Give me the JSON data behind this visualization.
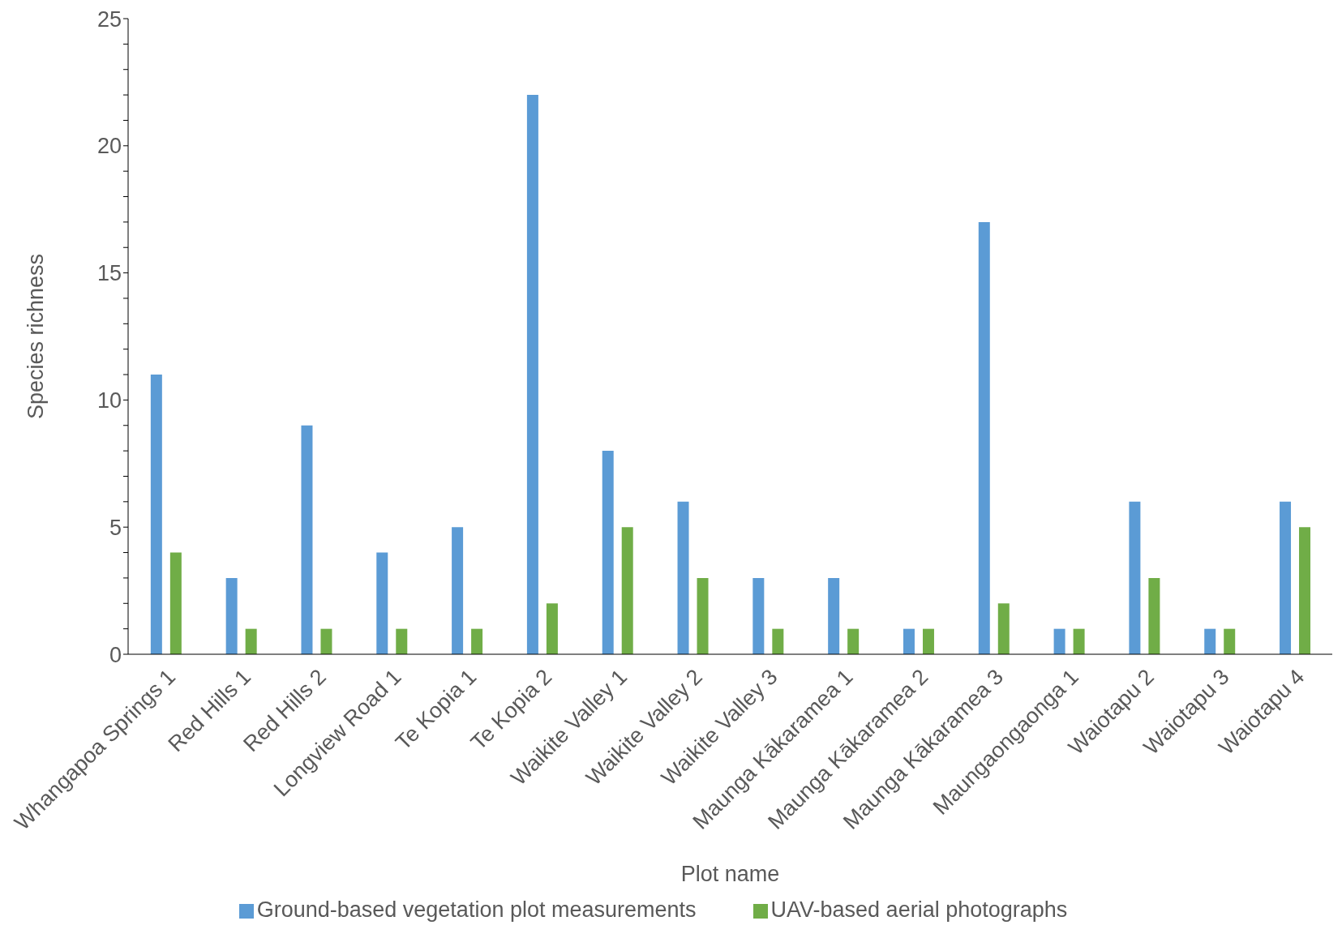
{
  "chart_data": {
    "type": "bar",
    "xlabel": "Plot name",
    "ylabel": "Species richness",
    "categories": [
      "Whangapoa Springs 1",
      "Red Hills 1",
      "Red Hills 2",
      "Longview Road 1",
      "Te Kopia 1",
      "Te Kopia 2",
      "Waikite Valley 1",
      "Waikite Valley 2",
      "Waikite Valley 3",
      "Maunga Kākaramea 1",
      "Maunga Kākaramea 2",
      "Maunga Kākaramea 3",
      "Maungaongaonga 1",
      "Waiotapu 2",
      "Waiotapu 3",
      "Waiotapu 4"
    ],
    "series": [
      {
        "name": "Ground-based vegetation plot measurements",
        "color": "#5b9bd5",
        "values": [
          11,
          3,
          9,
          4,
          5,
          22,
          8,
          6,
          3,
          3,
          1,
          17,
          1,
          6,
          1,
          6
        ]
      },
      {
        "name": "UAV-based aerial photographs",
        "color": "#70ad47",
        "values": [
          4,
          1,
          1,
          1,
          1,
          2,
          5,
          3,
          1,
          1,
          1,
          2,
          1,
          3,
          1,
          5
        ]
      }
    ],
    "ylim": [
      0,
      25
    ],
    "yticks": [
      0,
      {
        "value": 1,
        "label": null
      },
      {
        "value": 2,
        "label": null
      },
      {
        "value": 3,
        "label": null
      },
      {
        "value": 4,
        "label": null
      },
      5,
      {
        "value": 6,
        "label": null
      },
      {
        "value": 7,
        "label": null
      },
      {
        "value": 8,
        "label": null
      },
      {
        "value": 9,
        "label": null
      },
      10,
      {
        "value": 11,
        "label": null
      },
      {
        "value": 12,
        "label": null
      },
      {
        "value": 13,
        "label": null
      },
      {
        "value": 14,
        "label": null
      },
      15,
      {
        "value": 16,
        "label": null
      },
      {
        "value": 17,
        "label": null
      },
      {
        "value": 18,
        "label": null
      },
      {
        "value": 19,
        "label": null
      },
      20,
      {
        "value": 21,
        "label": null
      },
      {
        "value": 22,
        "label": null
      },
      {
        "value": 23,
        "label": null
      },
      {
        "value": 24,
        "label": null
      },
      25
    ],
    "grid": false,
    "legend": "bottom"
  }
}
